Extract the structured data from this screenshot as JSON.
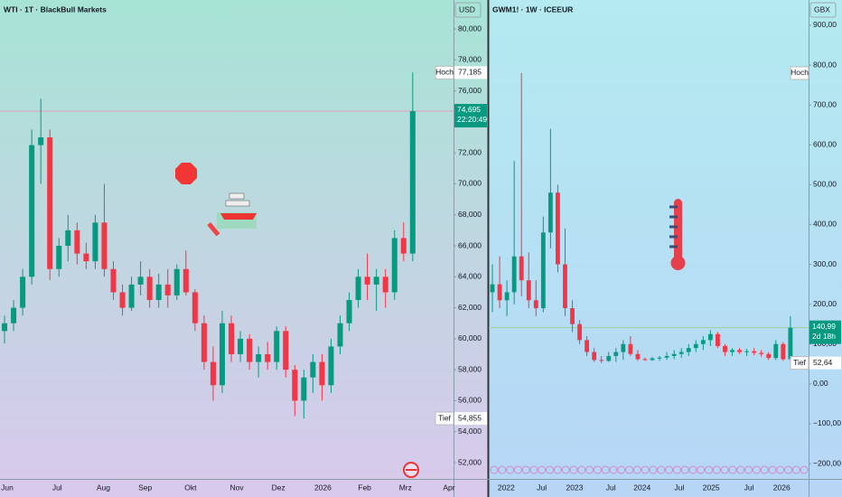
{
  "chart_data": [
    {
      "type": "candlestick",
      "title": "WTI · 1T · BlackBull Markets",
      "currency": "USD",
      "up_color": "#089981",
      "down_color": "#f23645",
      "ylim": [
        50.95,
        81.87
      ],
      "yticks": [
        {
          "value": 52,
          "label": "52,000"
        },
        {
          "value": 54,
          "label": "54,000"
        },
        {
          "value": 56,
          "label": "56,000"
        },
        {
          "value": 58,
          "label": "58,000"
        },
        {
          "value": 60,
          "label": "60,000"
        },
        {
          "value": 62,
          "label": "62,000"
        },
        {
          "value": 64,
          "label": "64,000"
        },
        {
          "value": 66,
          "label": "66,000"
        },
        {
          "value": 68,
          "label": "68,000"
        },
        {
          "value": 70,
          "label": "70,000"
        },
        {
          "value": 72,
          "label": "72,000"
        },
        {
          "value": 74,
          "label": "74,000"
        },
        {
          "value": 76,
          "label": "76,000"
        },
        {
          "value": 78,
          "label": "78,000"
        },
        {
          "value": 80,
          "label": "80,000"
        }
      ],
      "xlim": [
        0,
        50
      ],
      "xticks": [
        {
          "value": 0.8,
          "label": "Jun"
        },
        {
          "value": 6.3,
          "label": "Jul"
        },
        {
          "value": 11.4,
          "label": "Aug"
        },
        {
          "value": 16,
          "label": "Sep"
        },
        {
          "value": 21,
          "label": "Okt"
        },
        {
          "value": 26.1,
          "label": "Nov"
        },
        {
          "value": 30.7,
          "label": "Dez"
        },
        {
          "value": 35.6,
          "label": "2026"
        },
        {
          "value": 40.2,
          "label": "Feb"
        },
        {
          "value": 44.7,
          "label": "Mrz"
        },
        {
          "value": 49.5,
          "label": "Apr"
        }
      ],
      "ohlc": [
        [
          60.5,
          61.5,
          59.7,
          61
        ],
        [
          61,
          62.5,
          60.5,
          62
        ],
        [
          62,
          64.5,
          61.5,
          64
        ],
        [
          64,
          73.5,
          63.5,
          72.5
        ],
        [
          72.5,
          75.5,
          70,
          73
        ],
        [
          73,
          73.5,
          63.8,
          64.5
        ],
        [
          64.5,
          66.5,
          64,
          66
        ],
        [
          66,
          68,
          65,
          67
        ],
        [
          67,
          67.5,
          64.8,
          65.5
        ],
        [
          65.5,
          66.2,
          64.5,
          65
        ],
        [
          65,
          68,
          64.5,
          67.5
        ],
        [
          67.5,
          70,
          64,
          64.5
        ],
        [
          64.5,
          65,
          62.5,
          63
        ],
        [
          63,
          63.5,
          61.5,
          62
        ],
        [
          62,
          64,
          61.8,
          63.5
        ],
        [
          63.5,
          65,
          62.8,
          64
        ],
        [
          64,
          64.5,
          62,
          62.5
        ],
        [
          62.5,
          64.2,
          62,
          63.5
        ],
        [
          63.5,
          64.5,
          62,
          62.8
        ],
        [
          62.8,
          64.8,
          62.5,
          64.5
        ],
        [
          64.5,
          65.7,
          62.8,
          63
        ],
        [
          63,
          63.2,
          60.5,
          61
        ],
        [
          61,
          61.5,
          58,
          58.5
        ],
        [
          58.5,
          59.5,
          56,
          57
        ],
        [
          57,
          61.8,
          56.5,
          61
        ],
        [
          61,
          61.5,
          58.5,
          59
        ],
        [
          59,
          60.5,
          58.5,
          60
        ],
        [
          60,
          60.3,
          58,
          58.5
        ],
        [
          58.5,
          59.5,
          57.5,
          59
        ],
        [
          59,
          59.8,
          58,
          58.5
        ],
        [
          58.5,
          60.8,
          58,
          60.5
        ],
        [
          60.5,
          60.8,
          57.5,
          58
        ],
        [
          58,
          58.3,
          55,
          56
        ],
        [
          56,
          58,
          54.855,
          57.5
        ],
        [
          57.5,
          59,
          56.5,
          58.5
        ],
        [
          58.5,
          59,
          56,
          57
        ],
        [
          57,
          60,
          56.5,
          59.5
        ],
        [
          59.5,
          61.5,
          59,
          61
        ],
        [
          61,
          63,
          60.5,
          62.5
        ],
        [
          62.5,
          64.5,
          62,
          64
        ],
        [
          64,
          65.5,
          62.5,
          63.5
        ],
        [
          63.5,
          64.5,
          61.8,
          64
        ],
        [
          64,
          64.5,
          62,
          63
        ],
        [
          63,
          67,
          62.5,
          66.5
        ],
        [
          66.5,
          67.5,
          65,
          65.5
        ],
        [
          65.5,
          77.185,
          65,
          74.695
        ]
      ],
      "high": {
        "text": "Hoch",
        "value": 77.185,
        "label": "77,185"
      },
      "low": {
        "text": "Tief",
        "value": 54.855,
        "label": "54,855"
      },
      "last": {
        "value": 74.695,
        "label": "74,695",
        "countdown": "22:20:49"
      }
    },
    {
      "type": "candlestick",
      "title": "GWM1! · 1W · ICEEUR",
      "currency": "GBX",
      "up_color": "#089981",
      "down_color": "#f23645",
      "ylim": [
        -238.5,
        963.5
      ],
      "yticks": [
        {
          "value": -200,
          "label": "−200,00"
        },
        {
          "value": -100,
          "label": "−100,00"
        },
        {
          "value": 0,
          "label": "0,00"
        },
        {
          "value": 100,
          "label": "100,00"
        },
        {
          "value": 200,
          "label": "200,00"
        },
        {
          "value": 300,
          "label": "300,00"
        },
        {
          "value": 400,
          "label": "400,00"
        },
        {
          "value": 500,
          "label": "500,00"
        },
        {
          "value": 600,
          "label": "600,00"
        },
        {
          "value": 700,
          "label": "700,00"
        },
        {
          "value": 800,
          "label": "800,00"
        },
        {
          "value": 900,
          "label": "900,00"
        }
      ],
      "xlim": [
        0,
        44
      ],
      "xticks": [
        {
          "value": 2.4,
          "label": "2022"
        },
        {
          "value": 7.3,
          "label": "Jul"
        },
        {
          "value": 11.8,
          "label": "2023"
        },
        {
          "value": 16.8,
          "label": "Jul"
        },
        {
          "value": 21.1,
          "label": "2024"
        },
        {
          "value": 26.2,
          "label": "Jul"
        },
        {
          "value": 30.6,
          "label": "2025"
        },
        {
          "value": 35.8,
          "label": "Jul"
        },
        {
          "value": 40.3,
          "label": "2026"
        }
      ],
      "ohlc": [
        [
          230,
          300,
          180,
          250
        ],
        [
          250,
          320,
          190,
          210
        ],
        [
          210,
          260,
          170,
          230
        ],
        [
          230,
          560,
          200,
          320
        ],
        [
          320,
          780,
          220,
          260
        ],
        [
          260,
          330,
          190,
          210
        ],
        [
          210,
          260,
          170,
          190
        ],
        [
          190,
          420,
          180,
          380
        ],
        [
          380,
          640,
          340,
          480
        ],
        [
          480,
          500,
          280,
          300
        ],
        [
          300,
          390,
          170,
          190
        ],
        [
          190,
          210,
          130,
          150
        ],
        [
          150,
          160,
          100,
          110
        ],
        [
          110,
          120,
          70,
          80
        ],
        [
          80,
          90,
          55,
          60
        ],
        [
          60,
          70,
          52.64,
          58
        ],
        [
          58,
          80,
          55,
          70
        ],
        [
          70,
          90,
          55,
          80
        ],
        [
          80,
          110,
          60,
          100
        ],
        [
          100,
          120,
          70,
          75
        ],
        [
          75,
          85,
          58,
          62
        ],
        [
          62,
          66,
          58,
          60
        ],
        [
          60,
          68,
          58,
          64
        ],
        [
          64,
          70,
          58,
          66
        ],
        [
          66,
          80,
          60,
          70
        ],
        [
          70,
          85,
          62,
          75
        ],
        [
          75,
          90,
          65,
          80
        ],
        [
          80,
          100,
          70,
          90
        ],
        [
          90,
          110,
          80,
          100
        ],
        [
          100,
          120,
          85,
          110
        ],
        [
          110,
          135,
          95,
          125
        ],
        [
          125,
          130,
          90,
          95
        ],
        [
          95,
          100,
          70,
          80
        ],
        [
          80,
          90,
          70,
          85
        ],
        [
          85,
          90,
          75,
          80
        ],
        [
          80,
          88,
          70,
          82
        ],
        [
          82,
          90,
          72,
          78
        ],
        [
          78,
          85,
          68,
          75
        ],
        [
          75,
          80,
          60,
          65
        ],
        [
          65,
          110,
          60,
          100
        ],
        [
          100,
          105,
          58,
          62
        ],
        [
          62,
          170,
          58,
          140.99
        ]
      ],
      "high": {
        "text": "Hoch",
        "value": 780
      },
      "low": {
        "text": "Tief",
        "value": 52.64,
        "label": "52,64"
      },
      "last": {
        "value": 140.99,
        "label": "140,99",
        "countdown": "2d 18h"
      }
    }
  ]
}
